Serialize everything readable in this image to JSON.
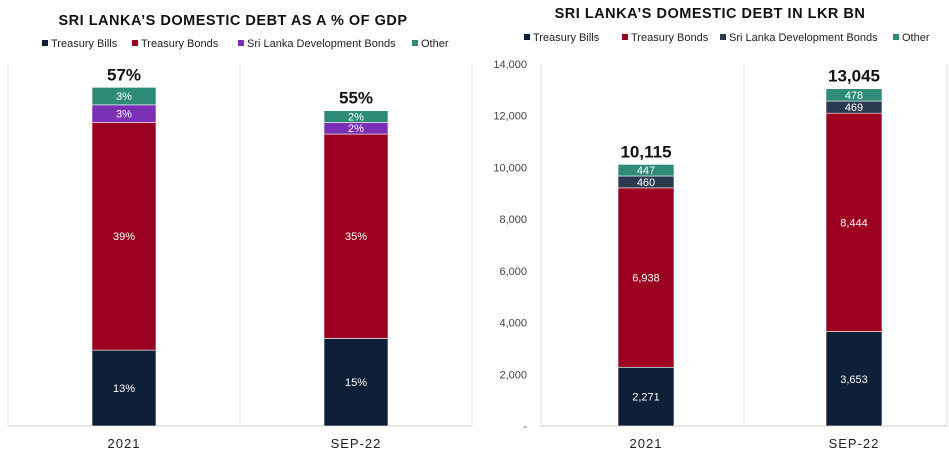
{
  "chart_data": [
    {
      "type": "bar",
      "stacked": true,
      "title": "SRI LANKA’S DOMESTIC DEBT AS A % OF GDP",
      "categories": [
        "2021",
        "SEP-22"
      ],
      "series": [
        {
          "name": "Treasury Bills",
          "color": "#0d2038",
          "values": [
            13,
            15
          ],
          "labels": [
            "13%",
            "15%"
          ]
        },
        {
          "name": "Treasury Bonds",
          "color": "#9b0020",
          "values": [
            39,
            35
          ],
          "labels": [
            "39%",
            "35%"
          ]
        },
        {
          "name": "Sri Lanka Development Bonds",
          "color": "#7b2fb5",
          "values": [
            3,
            2
          ],
          "labels": [
            "3%",
            "2%"
          ]
        },
        {
          "name": "Other",
          "color": "#2e8b77",
          "values": [
            3,
            2
          ],
          "labels": [
            "3%",
            "2%"
          ]
        }
      ],
      "totals": [
        "57%",
        "55%"
      ],
      "legend": "top",
      "grid": false,
      "ylim": [
        0,
        62
      ]
    },
    {
      "type": "bar",
      "stacked": true,
      "title": "SRI LANKA’S DOMESTIC DEBT IN LKR BN",
      "categories": [
        "2021",
        "SEP-22"
      ],
      "series": [
        {
          "name": "Treasury Bills",
          "color": "#0d2038",
          "values": [
            2271,
            3653
          ],
          "labels": [
            "2,271",
            "3,653"
          ]
        },
        {
          "name": "Treasury Bonds",
          "color": "#9b0020",
          "values": [
            6938,
            8444
          ],
          "labels": [
            "6,938",
            "8,444"
          ]
        },
        {
          "name": "Sri Lanka Development Bonds",
          "color": "#2a3a4e",
          "values": [
            460,
            469
          ],
          "labels": [
            "460",
            "469"
          ]
        },
        {
          "name": "Other",
          "color": "#2e8b77",
          "values": [
            447,
            478
          ],
          "labels": [
            "447",
            "478"
          ]
        }
      ],
      "totals": [
        "10,115",
        "13,045"
      ],
      "yticks": [
        0,
        2000,
        4000,
        6000,
        8000,
        10000,
        12000,
        14000
      ],
      "ytick_labels": [
        "-",
        "2,000",
        "4,000",
        "6,000",
        "8,000",
        "10,000",
        "12,000",
        "14,000"
      ],
      "legend": "top",
      "grid": false,
      "ylim": [
        0,
        14000
      ]
    }
  ]
}
